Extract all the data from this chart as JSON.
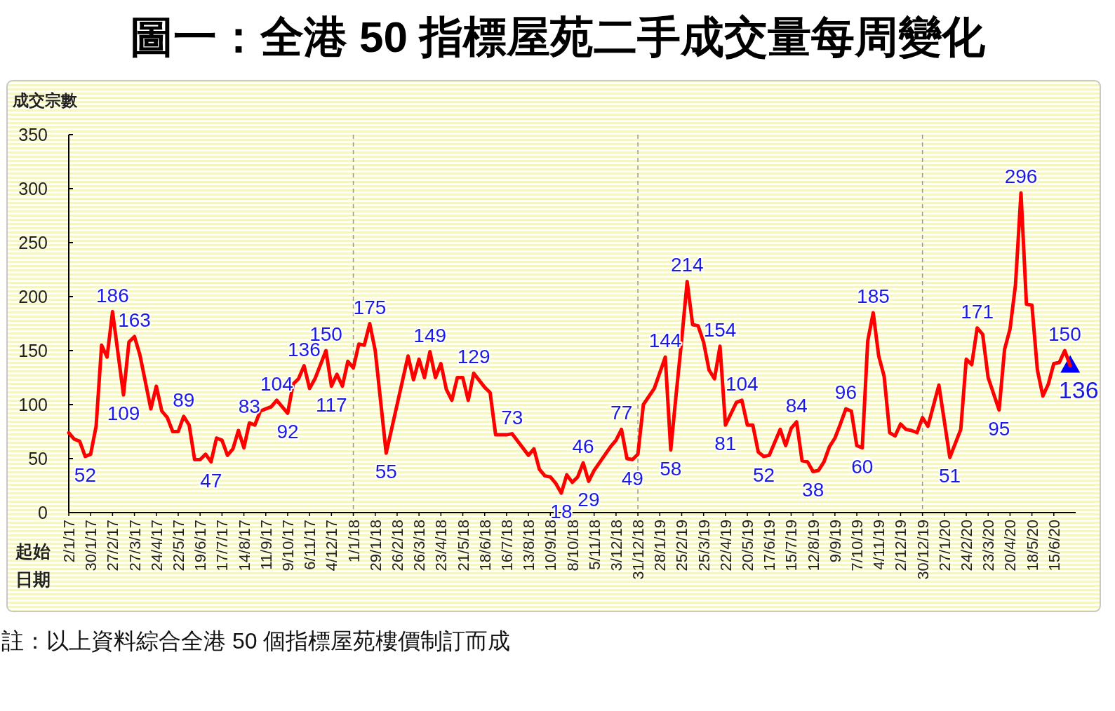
{
  "chart_data": {
    "type": "line",
    "title": "圖一：全港 50 指標屋苑二手成交量每周變化",
    "ylabel": "成交宗數",
    "xlabel": "起始日期",
    "annotations": [
      "註：以上資料綜合全港 50 個指標屋苑樓價制訂而成"
    ],
    "xlim": [
      "2017-01-02",
      "2020-07-13"
    ],
    "ylim": [
      0,
      350
    ],
    "yticks": [
      0,
      50,
      100,
      150,
      200,
      250,
      300,
      350
    ],
    "xticks": [
      {
        "value": "2017-01-02",
        "label": "2/1/17"
      },
      {
        "value": "2017-01-30",
        "label": "30/1/17"
      },
      {
        "value": "2017-02-27",
        "label": "27/2/17"
      },
      {
        "value": "2017-03-27",
        "label": "27/3/17"
      },
      {
        "value": "2017-04-24",
        "label": "24/4/17"
      },
      {
        "value": "2017-05-22",
        "label": "22/5/17"
      },
      {
        "value": "2017-06-19",
        "label": "19/6/17"
      },
      {
        "value": "2017-07-17",
        "label": "17/7/17"
      },
      {
        "value": "2017-08-14",
        "label": "14/8/17"
      },
      {
        "value": "2017-09-11",
        "label": "11/9/17"
      },
      {
        "value": "2017-10-09",
        "label": "9/10/17"
      },
      {
        "value": "2017-11-06",
        "label": "6/11/17"
      },
      {
        "value": "2017-12-04",
        "label": "4/12/17"
      },
      {
        "value": "2018-01-01",
        "label": "1/1/18"
      },
      {
        "value": "2018-01-29",
        "label": "29/1/18"
      },
      {
        "value": "2018-02-26",
        "label": "26/2/18"
      },
      {
        "value": "2018-03-26",
        "label": "26/3/18"
      },
      {
        "value": "2018-04-23",
        "label": "23/4/18"
      },
      {
        "value": "2018-05-21",
        "label": "21/5/18"
      },
      {
        "value": "2018-06-18",
        "label": "18/6/18"
      },
      {
        "value": "2018-07-16",
        "label": "16/7/18"
      },
      {
        "value": "2018-08-13",
        "label": "13/8/18"
      },
      {
        "value": "2018-09-10",
        "label": "10/9/18"
      },
      {
        "value": "2018-10-08",
        "label": "8/10/18"
      },
      {
        "value": "2018-11-05",
        "label": "5/11/18"
      },
      {
        "value": "2018-12-03",
        "label": "3/12/18"
      },
      {
        "value": "2018-12-31",
        "label": "31/12/18"
      },
      {
        "value": "2019-01-28",
        "label": "28/1/19"
      },
      {
        "value": "2019-02-25",
        "label": "25/2/19"
      },
      {
        "value": "2019-03-25",
        "label": "25/3/19"
      },
      {
        "value": "2019-04-22",
        "label": "22/4/19"
      },
      {
        "value": "2019-05-20",
        "label": "20/5/19"
      },
      {
        "value": "2019-06-17",
        "label": "17/6/19"
      },
      {
        "value": "2019-07-15",
        "label": "15/7/19"
      },
      {
        "value": "2019-08-12",
        "label": "12/8/19"
      },
      {
        "value": "2019-09-09",
        "label": "9/9/19"
      },
      {
        "value": "2019-10-07",
        "label": "7/10/19"
      },
      {
        "value": "2019-11-04",
        "label": "4/11/19"
      },
      {
        "value": "2019-12-02",
        "label": "2/12/19"
      },
      {
        "value": "2019-12-30",
        "label": "30/12/19"
      },
      {
        "value": "2020-01-27",
        "label": "27/1/20"
      },
      {
        "value": "2020-02-24",
        "label": "24/2/20"
      },
      {
        "value": "2020-03-23",
        "label": "23/3/20"
      },
      {
        "value": "2020-04-20",
        "label": "20/4/20"
      },
      {
        "value": "2020-05-18",
        "label": "18/5/20"
      },
      {
        "value": "2020-06-15",
        "label": "15/6/20"
      }
    ],
    "ref_lines": [
      {
        "axis": "x",
        "value": "2018-01-01",
        "color": "#999999",
        "line_style": "dashed"
      },
      {
        "axis": "x",
        "value": "2018-12-31",
        "color": "#999999",
        "line_style": "dashed"
      },
      {
        "axis": "x",
        "value": "2019-12-30",
        "color": "#999999",
        "line_style": "dashed"
      }
    ],
    "series": [
      {
        "color": "#ff0000",
        "line_style": "solid",
        "marker": "none",
        "x": [
          "2017-01-02",
          "2017-01-09",
          "2017-01-16",
          "2017-01-23",
          "2017-01-30",
          "2017-02-06",
          "2017-02-13",
          "2017-02-20",
          "2017-02-27",
          "2017-03-13",
          "2017-03-20",
          "2017-03-27",
          "2017-04-03",
          "2017-04-17",
          "2017-04-24",
          "2017-05-01",
          "2017-05-08",
          "2017-05-15",
          "2017-05-22",
          "2017-05-29",
          "2017-06-05",
          "2017-06-12",
          "2017-06-19",
          "2017-06-26",
          "2017-07-03",
          "2017-07-10",
          "2017-07-17",
          "2017-07-24",
          "2017-07-31",
          "2017-08-07",
          "2017-08-14",
          "2017-08-21",
          "2017-08-28",
          "2017-09-04",
          "2017-09-11",
          "2017-09-18",
          "2017-09-25",
          "2017-10-09",
          "2017-10-16",
          "2017-10-23",
          "2017-10-30",
          "2017-11-06",
          "2017-11-13",
          "2017-11-27",
          "2017-12-04",
          "2017-12-11",
          "2017-12-18",
          "2017-12-25",
          "2018-01-01",
          "2018-01-08",
          "2018-01-15",
          "2018-01-22",
          "2018-01-29",
          "2018-02-12",
          "2018-03-12",
          "2018-03-19",
          "2018-03-26",
          "2018-04-02",
          "2018-04-09",
          "2018-04-16",
          "2018-04-23",
          "2018-04-30",
          "2018-05-07",
          "2018-05-14",
          "2018-05-21",
          "2018-05-28",
          "2018-06-04",
          "2018-06-18",
          "2018-06-25",
          "2018-07-02",
          "2018-07-16",
          "2018-07-23",
          "2018-08-13",
          "2018-08-20",
          "2018-08-27",
          "2018-09-03",
          "2018-09-10",
          "2018-09-17",
          "2018-09-24",
          "2018-10-01",
          "2018-10-08",
          "2018-10-15",
          "2018-10-22",
          "2018-10-29",
          "2018-11-05",
          "2018-11-26",
          "2018-12-03",
          "2018-12-10",
          "2018-12-17",
          "2018-12-24",
          "2018-12-31",
          "2019-01-07",
          "2019-01-21",
          "2019-02-04",
          "2019-02-11",
          "2019-02-18",
          "2019-02-25",
          "2019-03-04",
          "2019-03-11",
          "2019-03-18",
          "2019-03-25",
          "2019-04-01",
          "2019-04-08",
          "2019-04-15",
          "2019-04-22",
          "2019-05-06",
          "2019-05-13",
          "2019-05-20",
          "2019-05-27",
          "2019-06-03",
          "2019-06-10",
          "2019-06-17",
          "2019-07-01",
          "2019-07-08",
          "2019-07-15",
          "2019-07-22",
          "2019-07-29",
          "2019-08-05",
          "2019-08-12",
          "2019-08-19",
          "2019-08-26",
          "2019-09-02",
          "2019-09-09",
          "2019-09-16",
          "2019-09-23",
          "2019-09-30",
          "2019-10-07",
          "2019-10-14",
          "2019-10-21",
          "2019-10-28",
          "2019-11-04",
          "2019-11-11",
          "2019-11-18",
          "2019-11-25",
          "2019-12-02",
          "2019-12-09",
          "2019-12-16",
          "2019-12-23",
          "2019-12-30",
          "2020-01-06",
          "2020-01-20",
          "2020-02-03",
          "2020-02-17",
          "2020-02-24",
          "2020-03-02",
          "2020-03-09",
          "2020-03-16",
          "2020-03-23",
          "2020-04-06",
          "2020-04-13",
          "2020-04-20",
          "2020-04-27",
          "2020-05-04",
          "2020-05-11",
          "2020-05-18",
          "2020-05-25",
          "2020-06-01",
          "2020-06-08",
          "2020-06-15",
          "2020-06-22",
          "2020-06-29",
          "2020-07-06"
        ],
        "values": [
          74,
          68,
          66,
          52,
          54,
          80,
          155,
          144,
          186,
          109,
          158,
          163,
          146,
          96,
          117,
          94,
          88,
          75,
          75,
          89,
          81,
          49,
          49,
          54,
          47,
          69,
          67,
          53,
          59,
          76,
          60,
          83,
          81,
          94,
          96,
          98,
          104,
          92,
          119,
          124,
          136,
          115,
          124,
          150,
          117,
          128,
          117,
          140,
          134,
          156,
          155,
          175,
          150,
          55,
          145,
          123,
          142,
          125,
          149,
          125,
          138,
          114,
          104,
          125,
          125,
          104,
          129,
          116,
          111,
          72,
          72,
          73,
          53,
          59,
          40,
          34,
          33,
          27,
          18,
          35,
          28,
          33,
          46,
          29,
          39,
          61,
          67,
          77,
          50,
          49,
          54,
          100,
          115,
          144,
          58,
          110,
          160,
          214,
          174,
          173,
          158,
          132,
          124,
          154,
          81,
          102,
          104,
          81,
          81,
          56,
          52,
          53,
          77,
          62,
          78,
          84,
          48,
          47,
          38,
          39,
          47,
          61,
          69,
          82,
          96,
          94,
          62,
          60,
          159,
          185,
          145,
          126,
          74,
          71,
          82,
          77,
          76,
          74,
          88,
          80,
          118,
          51,
          77,
          142,
          137,
          171,
          165,
          125,
          95,
          151,
          170,
          211,
          296,
          193,
          192,
          132,
          108,
          119,
          138,
          139,
          150,
          136
        ],
        "value_labels": [
          null,
          null,
          null,
          "52",
          null,
          null,
          null,
          null,
          "186",
          "109",
          null,
          "163",
          null,
          null,
          null,
          null,
          null,
          null,
          null,
          "89",
          null,
          null,
          null,
          null,
          "47",
          null,
          null,
          null,
          null,
          null,
          null,
          "83",
          null,
          null,
          null,
          null,
          "104",
          "92",
          null,
          null,
          "136",
          null,
          null,
          "150",
          "117",
          null,
          null,
          null,
          null,
          null,
          null,
          "175",
          null,
          "55",
          null,
          null,
          null,
          null,
          "149",
          null,
          null,
          null,
          null,
          null,
          null,
          null,
          "129",
          null,
          null,
          null,
          null,
          "73",
          null,
          null,
          null,
          null,
          null,
          null,
          "18",
          null,
          null,
          null,
          "46",
          "29",
          null,
          null,
          null,
          "77",
          null,
          "49",
          null,
          null,
          null,
          "144",
          "58",
          null,
          null,
          "214",
          null,
          null,
          null,
          null,
          null,
          "154",
          "81",
          null,
          "104",
          null,
          null,
          null,
          "52",
          null,
          null,
          null,
          null,
          "84",
          null,
          null,
          "38",
          null,
          null,
          null,
          null,
          null,
          "96",
          null,
          null,
          "60",
          null,
          "185",
          null,
          null,
          null,
          null,
          null,
          null,
          null,
          null,
          null,
          null,
          null,
          "51",
          null,
          null,
          null,
          "171",
          null,
          null,
          "95",
          null,
          null,
          null,
          "296",
          null,
          null,
          null,
          null,
          null,
          null,
          null,
          "150",
          null
        ]
      },
      {
        "type": "scatter",
        "color": "#0000ff",
        "marker": "triangle",
        "x": [
          "2020-07-06"
        ],
        "values": [
          136
        ],
        "value_labels": [
          "136"
        ]
      }
    ]
  }
}
